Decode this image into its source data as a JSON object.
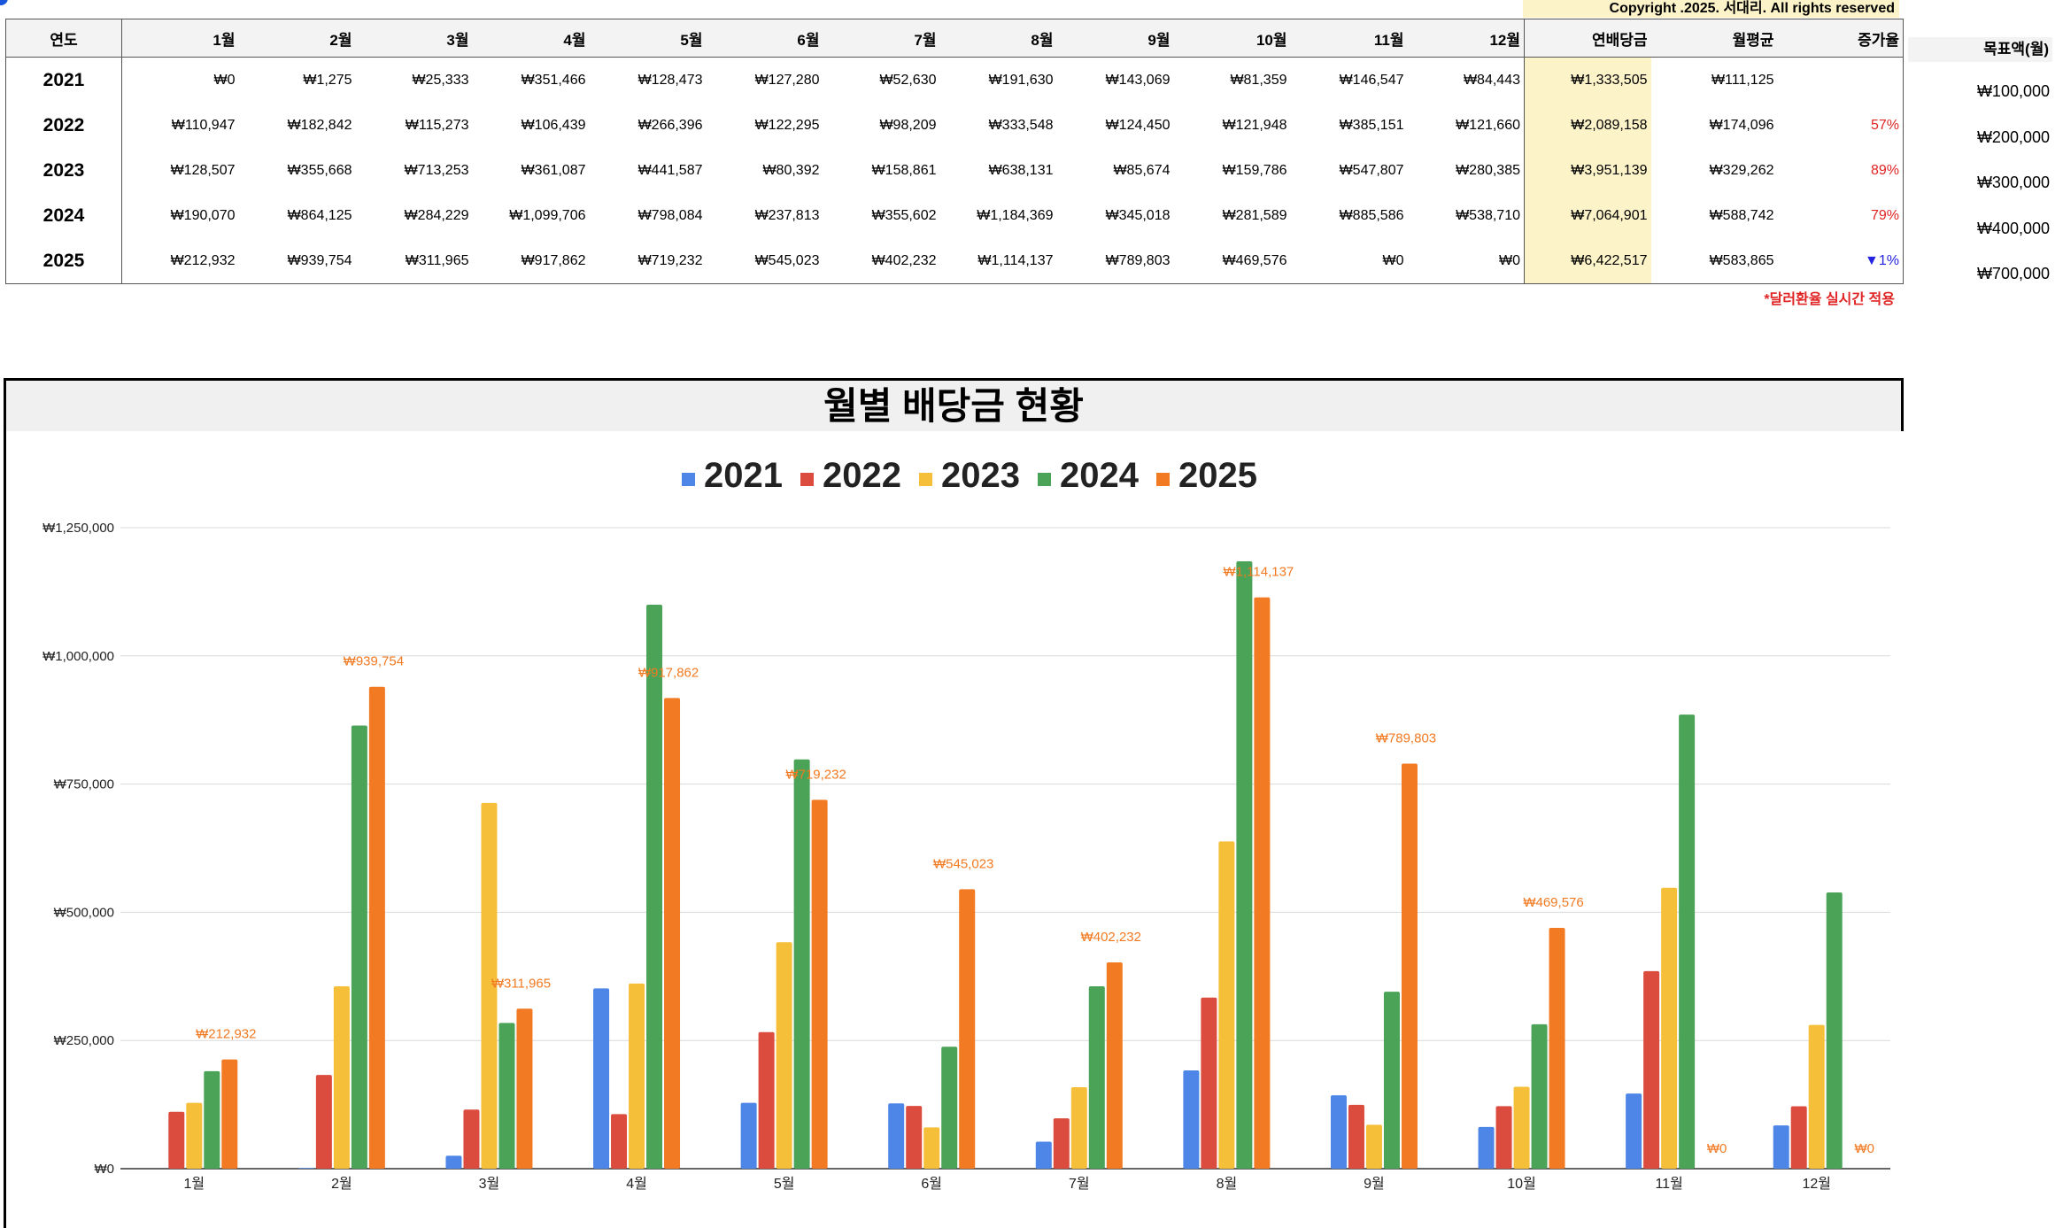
{
  "copyright": "Copyright .2025. 서대리. All rights reserved",
  "table": {
    "headers": [
      "연도",
      "1월",
      "2월",
      "3월",
      "4월",
      "5월",
      "6월",
      "7월",
      "8월",
      "9월",
      "10월",
      "11월",
      "12월",
      "연배당금",
      "월평균",
      "증가율"
    ],
    "rows": [
      {
        "year": "2021",
        "months": [
          "₩0",
          "₩1,275",
          "₩25,333",
          "₩351,466",
          "₩128,473",
          "₩127,280",
          "₩52,630",
          "₩191,630",
          "₩143,069",
          "₩81,359",
          "₩146,547",
          "₩84,443"
        ],
        "annual": "₩1,333,505",
        "avg": "₩111,125",
        "growth": "",
        "growth_dir": "none"
      },
      {
        "year": "2022",
        "months": [
          "₩110,947",
          "₩182,842",
          "₩115,273",
          "₩106,439",
          "₩266,396",
          "₩122,295",
          "₩98,209",
          "₩333,548",
          "₩124,450",
          "₩121,948",
          "₩385,151",
          "₩121,660"
        ],
        "annual": "₩2,089,158",
        "avg": "₩174,096",
        "growth": "57%",
        "growth_dir": "up"
      },
      {
        "year": "2023",
        "months": [
          "₩128,507",
          "₩355,668",
          "₩713,253",
          "₩361,087",
          "₩441,587",
          "₩80,392",
          "₩158,861",
          "₩638,131",
          "₩85,674",
          "₩159,786",
          "₩547,807",
          "₩280,385"
        ],
        "annual": "₩3,951,139",
        "avg": "₩329,262",
        "growth": "89%",
        "growth_dir": "up"
      },
      {
        "year": "2024",
        "months": [
          "₩190,070",
          "₩864,125",
          "₩284,229",
          "₩1,099,706",
          "₩798,084",
          "₩237,813",
          "₩355,602",
          "₩1,184,369",
          "₩345,018",
          "₩281,589",
          "₩885,586",
          "₩538,710"
        ],
        "annual": "₩7,064,901",
        "avg": "₩588,742",
        "growth": "79%",
        "growth_dir": "up"
      },
      {
        "year": "2025",
        "months": [
          "₩212,932",
          "₩939,754",
          "₩311,965",
          "₩917,862",
          "₩719,232",
          "₩545,023",
          "₩402,232",
          "₩1,114,137",
          "₩789,803",
          "₩469,576",
          "₩0",
          "₩0"
        ],
        "annual": "₩6,422,517",
        "avg": "₩583,865",
        "growth": "▼1%",
        "growth_dir": "down"
      }
    ]
  },
  "fx_note": "*달러환율 실시간 적용",
  "target": {
    "title": "목표액(월)",
    "values": [
      "₩100,000",
      "₩200,000",
      "₩300,000",
      "₩400,000",
      "₩700,000"
    ]
  },
  "colors": {
    "2021": "#4e86e8",
    "2022": "#db4c3f",
    "2023": "#f6bf3a",
    "2024": "#4aa357",
    "2025": "#f27a22",
    "highlight": "#fdf3c8",
    "growth_up": "#e02424",
    "growth_down": "#2323e0"
  },
  "chart_data": {
    "type": "bar",
    "title": "월별 배당금 현황",
    "categories": [
      "1월",
      "2월",
      "3월",
      "4월",
      "5월",
      "6월",
      "7월",
      "8월",
      "9월",
      "10월",
      "11월",
      "12월"
    ],
    "series": [
      {
        "name": "2021",
        "values": [
          0,
          1275,
          25333,
          351466,
          128473,
          127280,
          52630,
          191630,
          143069,
          81359,
          146547,
          84443
        ]
      },
      {
        "name": "2022",
        "values": [
          110947,
          182842,
          115273,
          106439,
          266396,
          122295,
          98209,
          333548,
          124450,
          121948,
          385151,
          121660
        ]
      },
      {
        "name": "2023",
        "values": [
          128507,
          355668,
          713253,
          361087,
          441587,
          80392,
          158861,
          638131,
          85674,
          159786,
          547807,
          280385
        ]
      },
      {
        "name": "2024",
        "values": [
          190070,
          864125,
          284229,
          1099706,
          798084,
          237813,
          355602,
          1184369,
          345018,
          281589,
          885586,
          538710
        ]
      },
      {
        "name": "2025",
        "values": [
          212932,
          939754,
          311965,
          917862,
          719232,
          545023,
          402232,
          1114137,
          789803,
          469576,
          0,
          0
        ]
      }
    ],
    "data_labels_series": "2025",
    "data_labels": [
      "₩212,932",
      "₩939,754",
      "₩311,965",
      "₩917,862",
      "₩719,232",
      "₩545,023",
      "₩402,232",
      "₩1,114,137",
      "₩789,803",
      "₩469,576",
      "₩0",
      "₩0"
    ],
    "y_ticks": [
      0,
      250000,
      500000,
      750000,
      1000000,
      1250000
    ],
    "y_tick_labels": [
      "₩0",
      "₩250,000",
      "₩500,000",
      "₩750,000",
      "₩1,000,000",
      "₩1,250,000"
    ],
    "ylim": [
      0,
      1250000
    ],
    "legend_position": "top-center",
    "grid": true
  }
}
